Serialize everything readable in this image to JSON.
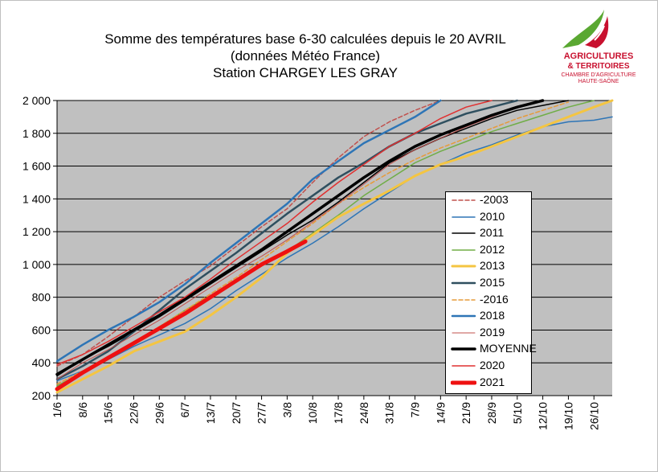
{
  "title": {
    "line1": "Somme des températures base 6-30 calculées depuis le 20 AVRIL",
    "line2": "(données Météo France)",
    "line3": "Station CHARGEY LES GRAY"
  },
  "logo": {
    "line1": "AGRICULTURES",
    "line2": "& TERRITOIRES",
    "line3": "CHAMBRE D'AGRICULTURE",
    "line4": "HAUTE-SAÔNE",
    "colors": {
      "red": "#c8102e",
      "green": "#5aa832"
    }
  },
  "chart_data": {
    "type": "line",
    "title": "Somme des températures base 6-30 calculées depuis le 20 AVRIL (données Météo France) Station CHARGEY LES GRAY",
    "xlabel": "",
    "ylabel": "",
    "x_ticks": [
      "1/6",
      "8/6",
      "15/6",
      "22/6",
      "29/6",
      "6/7",
      "13/7",
      "20/7",
      "27/7",
      "3/8",
      "10/8",
      "17/8",
      "24/8",
      "31/8",
      "7/9",
      "14/9",
      "21/9",
      "28/9",
      "5/10",
      "12/10",
      "19/10",
      "26/10"
    ],
    "x_tick_day_step": 7,
    "x_end_day": 152,
    "ylim": [
      200,
      2000
    ],
    "y_ticks": [
      200,
      400,
      600,
      800,
      1000,
      1200,
      1400,
      1600,
      1800,
      2000
    ],
    "y_tick_labels": [
      "200",
      "400",
      "600",
      "800",
      "1 000",
      "1 200",
      "1 400",
      "1 600",
      "1 800",
      "2 000"
    ],
    "grid": true,
    "plot_background": "#c0c0c0",
    "legend_position": "right-center",
    "series": [
      {
        "name": "-2003",
        "color": "#c0504d",
        "dash": "5,3",
        "width": 1.5,
        "points": [
          [
            0,
            380
          ],
          [
            7,
            450
          ],
          [
            14,
            560
          ],
          [
            21,
            680
          ],
          [
            28,
            800
          ],
          [
            35,
            900
          ],
          [
            42,
            990
          ],
          [
            49,
            1110
          ],
          [
            56,
            1230
          ],
          [
            63,
            1340
          ],
          [
            70,
            1500
          ],
          [
            77,
            1650
          ],
          [
            84,
            1780
          ],
          [
            91,
            1870
          ],
          [
            98,
            1940
          ],
          [
            105,
            2000
          ]
        ]
      },
      {
        "name": "2010",
        "color": "#2e75b6",
        "dash": "",
        "width": 1.5,
        "points": [
          [
            0,
            290
          ],
          [
            7,
            350
          ],
          [
            14,
            420
          ],
          [
            21,
            500
          ],
          [
            28,
            570
          ],
          [
            35,
            640
          ],
          [
            42,
            730
          ],
          [
            49,
            840
          ],
          [
            56,
            940
          ],
          [
            63,
            1040
          ],
          [
            70,
            1130
          ],
          [
            77,
            1230
          ],
          [
            84,
            1340
          ],
          [
            91,
            1440
          ],
          [
            98,
            1540
          ],
          [
            105,
            1610
          ],
          [
            112,
            1680
          ],
          [
            119,
            1730
          ],
          [
            126,
            1790
          ],
          [
            133,
            1840
          ],
          [
            140,
            1870
          ],
          [
            147,
            1880
          ],
          [
            152,
            1900
          ]
        ]
      },
      {
        "name": "2011",
        "color": "#000000",
        "dash": "",
        "width": 1.5,
        "points": [
          [
            0,
            320
          ],
          [
            7,
            420
          ],
          [
            14,
            500
          ],
          [
            21,
            590
          ],
          [
            28,
            680
          ],
          [
            35,
            780
          ],
          [
            42,
            880
          ],
          [
            49,
            980
          ],
          [
            56,
            1080
          ],
          [
            63,
            1180
          ],
          [
            70,
            1270
          ],
          [
            77,
            1380
          ],
          [
            84,
            1500
          ],
          [
            91,
            1620
          ],
          [
            98,
            1700
          ],
          [
            105,
            1770
          ],
          [
            112,
            1830
          ],
          [
            119,
            1890
          ],
          [
            126,
            1940
          ],
          [
            133,
            1970
          ],
          [
            140,
            2000
          ]
        ]
      },
      {
        "name": "2012",
        "color": "#70ad47",
        "dash": "",
        "width": 1.5,
        "points": [
          [
            0,
            260
          ],
          [
            7,
            340
          ],
          [
            14,
            420
          ],
          [
            21,
            520
          ],
          [
            28,
            620
          ],
          [
            35,
            720
          ],
          [
            42,
            810
          ],
          [
            49,
            900
          ],
          [
            56,
            990
          ],
          [
            63,
            1080
          ],
          [
            70,
            1190
          ],
          [
            77,
            1300
          ],
          [
            84,
            1420
          ],
          [
            91,
            1520
          ],
          [
            98,
            1620
          ],
          [
            105,
            1690
          ],
          [
            112,
            1750
          ],
          [
            119,
            1810
          ],
          [
            126,
            1860
          ],
          [
            133,
            1910
          ],
          [
            140,
            1960
          ],
          [
            147,
            2000
          ]
        ]
      },
      {
        "name": "2013",
        "color": "#f4c542",
        "dash": "",
        "width": 3,
        "points": [
          [
            0,
            220
          ],
          [
            7,
            300
          ],
          [
            14,
            380
          ],
          [
            21,
            470
          ],
          [
            28,
            530
          ],
          [
            35,
            590
          ],
          [
            42,
            690
          ],
          [
            49,
            800
          ],
          [
            56,
            920
          ],
          [
            63,
            1070
          ],
          [
            70,
            1180
          ],
          [
            77,
            1290
          ],
          [
            84,
            1370
          ],
          [
            91,
            1450
          ],
          [
            98,
            1540
          ],
          [
            105,
            1610
          ],
          [
            112,
            1660
          ],
          [
            119,
            1720
          ],
          [
            126,
            1780
          ],
          [
            133,
            1840
          ],
          [
            140,
            1900
          ],
          [
            147,
            1960
          ],
          [
            152,
            2000
          ]
        ]
      },
      {
        "name": "2015",
        "color": "#2f4f5f",
        "dash": "",
        "width": 2.5,
        "points": [
          [
            0,
            300
          ],
          [
            7,
            380
          ],
          [
            14,
            470
          ],
          [
            21,
            590
          ],
          [
            28,
            720
          ],
          [
            35,
            850
          ],
          [
            42,
            960
          ],
          [
            49,
            1070
          ],
          [
            56,
            1190
          ],
          [
            63,
            1310
          ],
          [
            70,
            1420
          ],
          [
            77,
            1530
          ],
          [
            84,
            1620
          ],
          [
            91,
            1720
          ],
          [
            98,
            1800
          ],
          [
            105,
            1860
          ],
          [
            112,
            1920
          ],
          [
            119,
            1960
          ],
          [
            126,
            2000
          ]
        ]
      },
      {
        "name": "-2016",
        "color": "#e69b3a",
        "dash": "5,3",
        "width": 1.5,
        "points": [
          [
            0,
            270
          ],
          [
            7,
            350
          ],
          [
            14,
            430
          ],
          [
            21,
            520
          ],
          [
            28,
            620
          ],
          [
            35,
            720
          ],
          [
            42,
            820
          ],
          [
            49,
            920
          ],
          [
            56,
            1030
          ],
          [
            63,
            1140
          ],
          [
            70,
            1250
          ],
          [
            77,
            1370
          ],
          [
            84,
            1470
          ],
          [
            91,
            1560
          ],
          [
            98,
            1640
          ],
          [
            105,
            1710
          ],
          [
            112,
            1770
          ],
          [
            119,
            1830
          ],
          [
            126,
            1890
          ],
          [
            133,
            1940
          ],
          [
            140,
            1990
          ]
        ]
      },
      {
        "name": "2018",
        "color": "#2e75b6",
        "dash": "",
        "width": 2.5,
        "points": [
          [
            0,
            410
          ],
          [
            7,
            510
          ],
          [
            14,
            600
          ],
          [
            21,
            680
          ],
          [
            28,
            770
          ],
          [
            35,
            880
          ],
          [
            42,
            1010
          ],
          [
            49,
            1130
          ],
          [
            56,
            1250
          ],
          [
            63,
            1370
          ],
          [
            70,
            1520
          ],
          [
            77,
            1630
          ],
          [
            84,
            1740
          ],
          [
            91,
            1820
          ],
          [
            98,
            1900
          ],
          [
            105,
            2000
          ]
        ]
      },
      {
        "name": "2019",
        "color": "#c0504d",
        "dash": "",
        "width": 1,
        "points": [
          [
            0,
            300
          ],
          [
            7,
            400
          ],
          [
            14,
            480
          ],
          [
            21,
            570
          ],
          [
            28,
            660
          ],
          [
            35,
            760
          ],
          [
            42,
            860
          ],
          [
            49,
            960
          ],
          [
            56,
            1050
          ],
          [
            63,
            1150
          ],
          [
            70,
            1260
          ],
          [
            77,
            1370
          ],
          [
            84,
            1490
          ],
          [
            91,
            1610
          ],
          [
            98,
            1700
          ],
          [
            105,
            1770
          ],
          [
            112,
            1840
          ],
          [
            119,
            1900
          ],
          [
            126,
            1960
          ],
          [
            133,
            2000
          ]
        ]
      },
      {
        "name": "MOYENNE",
        "color": "#000000",
        "dash": "",
        "width": 3.5,
        "points": [
          [
            0,
            330
          ],
          [
            7,
            420
          ],
          [
            14,
            510
          ],
          [
            21,
            600
          ],
          [
            28,
            690
          ],
          [
            35,
            790
          ],
          [
            42,
            890
          ],
          [
            49,
            990
          ],
          [
            56,
            1090
          ],
          [
            63,
            1200
          ],
          [
            70,
            1310
          ],
          [
            77,
            1420
          ],
          [
            84,
            1530
          ],
          [
            91,
            1630
          ],
          [
            98,
            1720
          ],
          [
            105,
            1790
          ],
          [
            112,
            1850
          ],
          [
            119,
            1910
          ],
          [
            126,
            1960
          ],
          [
            133,
            2000
          ]
        ]
      },
      {
        "name": "2020",
        "color": "#e03030",
        "dash": "",
        "width": 1.5,
        "points": [
          [
            0,
            390
          ],
          [
            7,
            450
          ],
          [
            14,
            530
          ],
          [
            21,
            620
          ],
          [
            28,
            710
          ],
          [
            35,
            800
          ],
          [
            42,
            910
          ],
          [
            49,
            1030
          ],
          [
            56,
            1140
          ],
          [
            63,
            1250
          ],
          [
            70,
            1380
          ],
          [
            77,
            1500
          ],
          [
            84,
            1610
          ],
          [
            91,
            1720
          ],
          [
            98,
            1800
          ],
          [
            105,
            1890
          ],
          [
            112,
            1960
          ],
          [
            119,
            2000
          ]
        ]
      },
      {
        "name": "2021",
        "color": "#ee1111",
        "dash": "",
        "width": 5,
        "points": [
          [
            0,
            240
          ],
          [
            7,
            340
          ],
          [
            14,
            430
          ],
          [
            21,
            520
          ],
          [
            28,
            610
          ],
          [
            35,
            700
          ],
          [
            42,
            800
          ],
          [
            49,
            900
          ],
          [
            56,
            1000
          ],
          [
            63,
            1080
          ],
          [
            68,
            1140
          ]
        ]
      }
    ]
  }
}
